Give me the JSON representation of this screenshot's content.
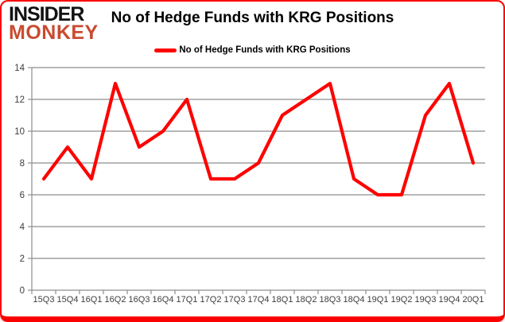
{
  "logo": {
    "line1": "INSIDER",
    "line2": "MONKEY"
  },
  "header": {
    "title": "No of Hedge Funds with KRG Positions"
  },
  "legend": {
    "label": "No of Hedge Funds with KRG Positions",
    "swatch_color": "#ff0000"
  },
  "colors": {
    "line": "#ff0000",
    "frame_border": "#fb0202",
    "gridline": "#8e8e8e",
    "axis_line": "#8e8e8e",
    "axis_text": "#3d3d3d",
    "logo_red": "#c94b30",
    "title_text": "#000000"
  },
  "chart_data": {
    "type": "line",
    "title": "No of Hedge Funds with KRG Positions",
    "categories": [
      "15Q3",
      "15Q4",
      "16Q1",
      "16Q2",
      "16Q3",
      "16Q4",
      "17Q1",
      "17Q2",
      "17Q3",
      "17Q4",
      "18Q1",
      "18Q2",
      "18Q3",
      "18Q4",
      "19Q1",
      "19Q2",
      "19Q3",
      "19Q4",
      "20Q1"
    ],
    "series": [
      {
        "name": "No of Hedge Funds with KRG Positions",
        "color": "#ff0000",
        "values": [
          7,
          9,
          7,
          13,
          9,
          10,
          12,
          7,
          7,
          8,
          11,
          12,
          13,
          7,
          6,
          6,
          11,
          13,
          8
        ]
      }
    ],
    "xlabel": "",
    "ylabel": "",
    "ylim": [
      0,
      14
    ],
    "ytick_step": 2,
    "grid": "horizontal",
    "legend_position": "top-center"
  }
}
